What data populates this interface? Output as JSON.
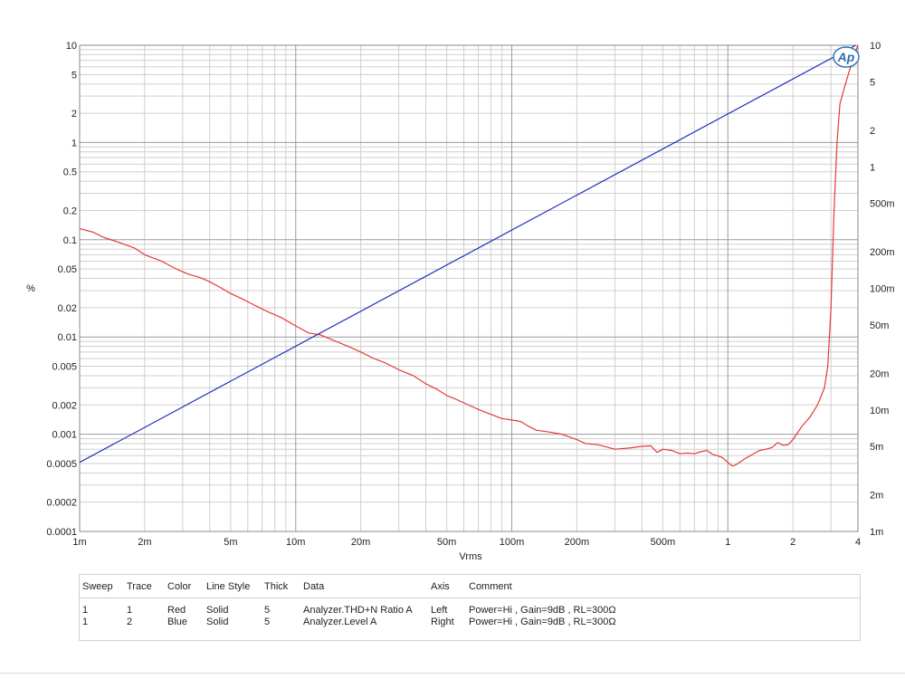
{
  "chart_data": {
    "type": "line",
    "xlabel": "Vrms",
    "ylabel_left": "%",
    "x_scale": "log",
    "y_left_scale": "log",
    "y_right_scale": "log",
    "xlim": [
      0.001,
      4
    ],
    "ylim_left": [
      0.0001,
      10
    ],
    "ylim_right": [
      0.001,
      10
    ],
    "grid": true,
    "logo_text": "Ap",
    "x_ticks": [
      {
        "v": 0.001,
        "label": "1m"
      },
      {
        "v": 0.002,
        "label": "2m"
      },
      {
        "v": 0.005,
        "label": "5m"
      },
      {
        "v": 0.01,
        "label": "10m"
      },
      {
        "v": 0.02,
        "label": "20m"
      },
      {
        "v": 0.05,
        "label": "50m"
      },
      {
        "v": 0.1,
        "label": "100m"
      },
      {
        "v": 0.2,
        "label": "200m"
      },
      {
        "v": 0.5,
        "label": "500m"
      },
      {
        "v": 1,
        "label": "1"
      },
      {
        "v": 2,
        "label": "2"
      },
      {
        "v": 4,
        "label": "4"
      }
    ],
    "y_left_ticks": [
      {
        "v": 10,
        "label": "10"
      },
      {
        "v": 5,
        "label": "5"
      },
      {
        "v": 2,
        "label": "2"
      },
      {
        "v": 1,
        "label": "1"
      },
      {
        "v": 0.5,
        "label": "0.5"
      },
      {
        "v": 0.2,
        "label": "0.2"
      },
      {
        "v": 0.1,
        "label": "0.1"
      },
      {
        "v": 0.05,
        "label": "0.05"
      },
      {
        "v": 0.02,
        "label": "0.02"
      },
      {
        "v": 0.01,
        "label": "0.01"
      },
      {
        "v": 0.005,
        "label": "0.005"
      },
      {
        "v": 0.002,
        "label": "0.002"
      },
      {
        "v": 0.001,
        "label": "0.001"
      },
      {
        "v": 0.0005,
        "label": "0.0005"
      },
      {
        "v": 0.0002,
        "label": "0.0002"
      },
      {
        "v": 0.0001,
        "label": "0.0001"
      }
    ],
    "y_right_ticks": [
      {
        "v": 10,
        "label": "10"
      },
      {
        "v": 5,
        "label": "5"
      },
      {
        "v": 2,
        "label": "2"
      },
      {
        "v": 1,
        "label": "1"
      },
      {
        "v": 0.5,
        "label": "500m"
      },
      {
        "v": 0.2,
        "label": "200m"
      },
      {
        "v": 0.1,
        "label": "100m"
      },
      {
        "v": 0.05,
        "label": "50m"
      },
      {
        "v": 0.02,
        "label": "20m"
      },
      {
        "v": 0.01,
        "label": "10m"
      },
      {
        "v": 0.005,
        "label": "5m"
      },
      {
        "v": 0.002,
        "label": "2m"
      },
      {
        "v": 0.001,
        "label": "1m"
      }
    ],
    "series": [
      {
        "name": "Analyzer.THD+N Ratio A",
        "axis": "left",
        "color": "#e53935",
        "x": [
          0.001,
          0.00115,
          0.0013,
          0.0015,
          0.0018,
          0.002,
          0.0024,
          0.0028,
          0.0032,
          0.0036,
          0.004,
          0.0045,
          0.005,
          0.0058,
          0.0065,
          0.0075,
          0.0085,
          0.01,
          0.0115,
          0.013,
          0.015,
          0.018,
          0.02,
          0.023,
          0.026,
          0.03,
          0.035,
          0.04,
          0.045,
          0.05,
          0.055,
          0.06,
          0.07,
          0.08,
          0.09,
          0.1,
          0.11,
          0.12,
          0.13,
          0.15,
          0.17,
          0.2,
          0.22,
          0.25,
          0.3,
          0.35,
          0.4,
          0.44,
          0.47,
          0.5,
          0.55,
          0.6,
          0.65,
          0.7,
          0.75,
          0.8,
          0.85,
          0.9,
          0.95,
          1.0,
          1.05,
          1.1,
          1.2,
          1.3,
          1.4,
          1.5,
          1.6,
          1.7,
          1.8,
          1.9,
          2.0,
          2.2,
          2.4,
          2.6,
          2.8,
          2.9,
          3.0,
          3.1,
          3.2,
          3.3,
          3.5,
          3.7,
          3.85,
          4.0
        ],
        "y": [
          0.13,
          0.12,
          0.105,
          0.095,
          0.082,
          0.07,
          0.06,
          0.05,
          0.044,
          0.041,
          0.037,
          0.032,
          0.028,
          0.024,
          0.021,
          0.018,
          0.016,
          0.013,
          0.011,
          0.0105,
          0.0092,
          0.0078,
          0.007,
          0.006,
          0.0054,
          0.0046,
          0.004,
          0.0033,
          0.0029,
          0.0025,
          0.0023,
          0.0021,
          0.0018,
          0.0016,
          0.00145,
          0.0014,
          0.00135,
          0.0012,
          0.0011,
          0.00105,
          0.001,
          0.00088,
          0.0008,
          0.00078,
          0.0007,
          0.00072,
          0.00075,
          0.00076,
          0.00065,
          0.0007,
          0.00068,
          0.00063,
          0.00064,
          0.00063,
          0.00066,
          0.00068,
          0.00062,
          0.0006,
          0.00057,
          0.00051,
          0.00047,
          0.00049,
          0.00056,
          0.00062,
          0.00068,
          0.0007,
          0.00073,
          0.00082,
          0.00077,
          0.00078,
          0.00088,
          0.0012,
          0.0015,
          0.002,
          0.003,
          0.005,
          0.02,
          0.2,
          1.0,
          2.5,
          4.0,
          6.0,
          8.0,
          10.0
        ]
      },
      {
        "name": "Analyzer.Level A",
        "axis": "right",
        "color": "#1e2fbf",
        "x": [
          0.001,
          3.9
        ],
        "y": [
          0.0037,
          10.0
        ]
      }
    ]
  },
  "legend": {
    "headers": {
      "sweep": "Sweep",
      "trace": "Trace",
      "color": "Color",
      "line_style": "Line Style",
      "thick": "Thick",
      "data": "Data",
      "axis": "Axis",
      "comment": "Comment"
    },
    "rows": [
      {
        "sweep": "1",
        "trace": "1",
        "color": "Red",
        "line_style": "Solid",
        "thick": "5",
        "data": "Analyzer.THD+N Ratio A",
        "axis": "Left",
        "comment": "Power=Hi , Gain=9dB , RL=300Ω"
      },
      {
        "sweep": "1",
        "trace": "2",
        "color": "Blue",
        "line_style": "Solid",
        "thick": "5",
        "data": "Analyzer.Level A",
        "axis": "Right",
        "comment": "Power=Hi , Gain=9dB , RL=300Ω"
      }
    ]
  }
}
